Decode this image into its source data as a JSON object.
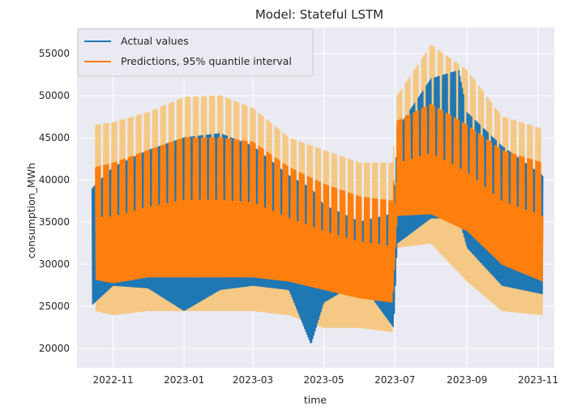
{
  "chart_data": {
    "type": "line",
    "title": "Model: Stateful LSTM",
    "xlabel": "time",
    "ylabel": "consumption_MWh",
    "x_range": [
      "2022-10-01",
      "2023-11-15"
    ],
    "ylim": [
      17700,
      58100
    ],
    "x_ticks": [
      {
        "date": "2022-11-01",
        "label": "2022-11"
      },
      {
        "date": "2023-01-01",
        "label": "2023-01"
      },
      {
        "date": "2023-03-01",
        "label": "2023-03"
      },
      {
        "date": "2023-05-01",
        "label": "2023-05"
      },
      {
        "date": "2023-07-01",
        "label": "2023-07"
      },
      {
        "date": "2023-09-01",
        "label": "2023-09"
      },
      {
        "date": "2023-11-01",
        "label": "2023-11"
      }
    ],
    "y_ticks": [
      20000,
      25000,
      30000,
      35000,
      40000,
      45000,
      50000,
      55000
    ],
    "grid": true,
    "legend": {
      "placement": "top-left"
    },
    "series": [
      {
        "name": "Actual values",
        "color": "#1f77b4",
        "x": [
          "2022-10-14",
          "2022-11-01",
          "2022-12-01",
          "2023-01-01",
          "2023-02-01",
          "2023-03-01",
          "2023-04-01",
          "2023-04-20",
          "2023-05-01",
          "2023-06-01",
          "2023-06-30",
          "2023-07-03",
          "2023-08-01",
          "2023-08-25",
          "2023-09-01",
          "2023-10-01",
          "2023-11-05"
        ],
        "upper": [
          39000,
          41500,
          43500,
          45000,
          45500,
          44000,
          40500,
          39000,
          37000,
          35000,
          36000,
          46000,
          52000,
          53000,
          48000,
          44000,
          40500
        ],
        "lower": [
          25200,
          27500,
          27200,
          24500,
          27000,
          27500,
          27000,
          20500,
          25500,
          28000,
          22500,
          32500,
          35500,
          35500,
          32000,
          27500,
          26500
        ]
      },
      {
        "name": "Predictions, 95% quantile interval",
        "color": "#ff7f0e",
        "band_color": "#f5c985",
        "x": [
          "2022-10-17",
          "2022-11-01",
          "2022-12-01",
          "2023-01-01",
          "2023-02-01",
          "2023-03-01",
          "2023-04-01",
          "2023-05-01",
          "2023-06-01",
          "2023-06-29",
          "2023-07-03",
          "2023-08-01",
          "2023-09-01",
          "2023-10-01",
          "2023-11-05"
        ],
        "upper": [
          41500,
          42000,
          43500,
          45000,
          45000,
          44500,
          41500,
          39500,
          38000,
          37500,
          47000,
          49000,
          46500,
          43500,
          42000
        ],
        "lower": [
          28200,
          27800,
          28500,
          28500,
          28500,
          28500,
          28000,
          27000,
          26000,
          25500,
          35800,
          36000,
          34000,
          30000,
          28000
        ],
        "band_upper": [
          46500,
          46800,
          48000,
          49800,
          50000,
          48500,
          45000,
          43500,
          42000,
          42000,
          50000,
          56000,
          53000,
          47500,
          46000
        ],
        "band_lower": [
          24500,
          24000,
          24500,
          24500,
          24500,
          24500,
          24000,
          22500,
          22500,
          22000,
          32000,
          32500,
          28000,
          24500,
          24000
        ]
      }
    ]
  }
}
